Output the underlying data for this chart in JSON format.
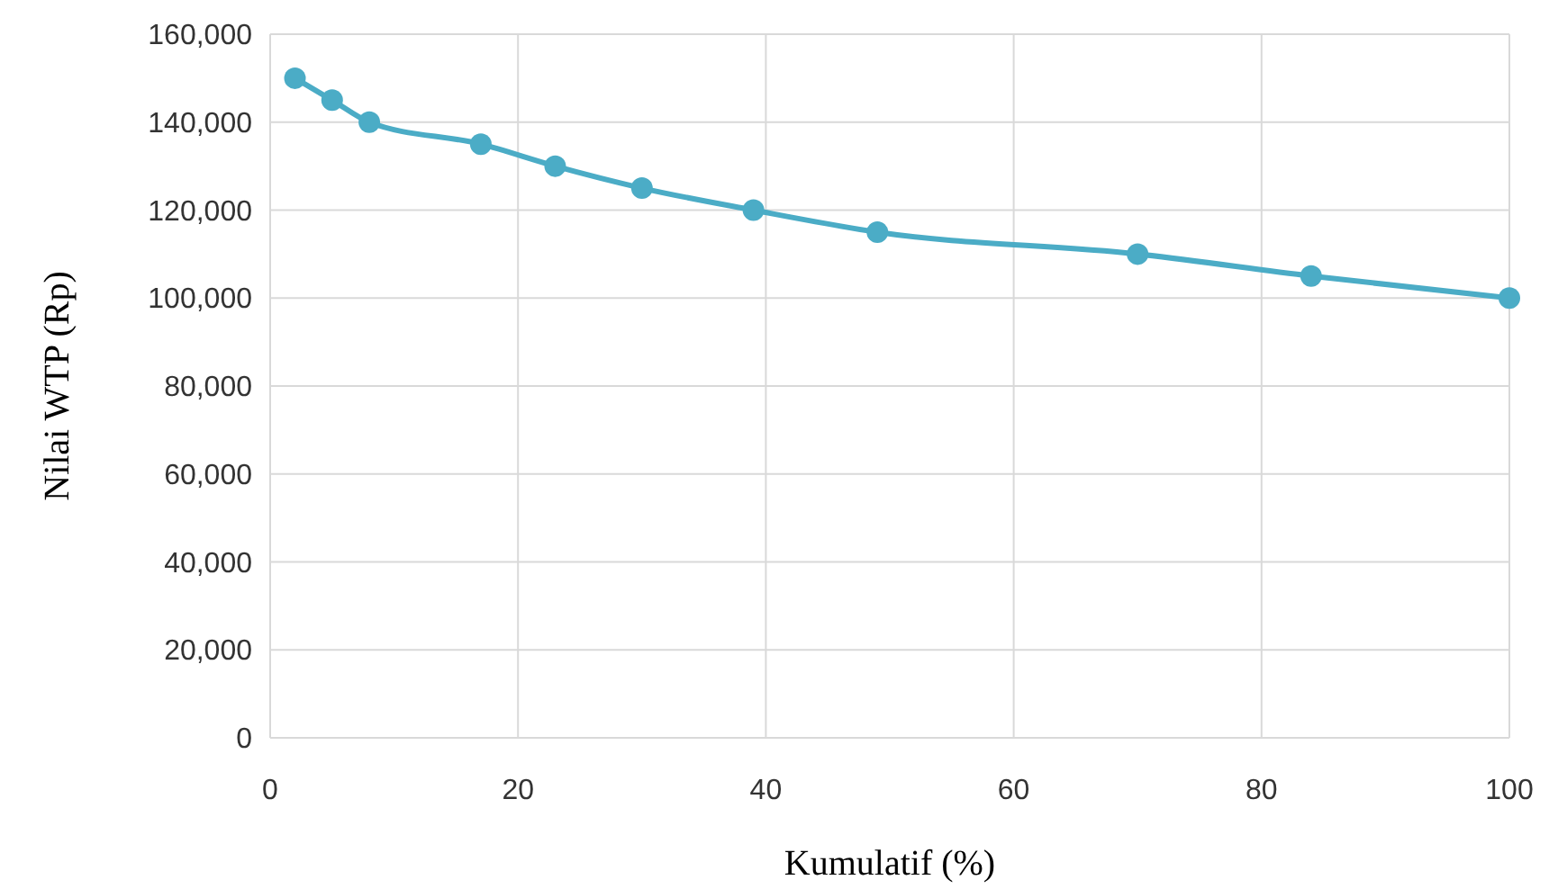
{
  "chart_data": {
    "type": "line",
    "xlabel": "Kumulatif (%)",
    "ylabel": "Nilai WTP (Rp)",
    "x": [
      2,
      5,
      8,
      17,
      23,
      30,
      39,
      49,
      70,
      84,
      100
    ],
    "series": [
      {
        "color": "#4bacc6",
        "values": [
          150000,
          145000,
          140000,
          135000,
          130000,
          125000,
          120000,
          115000,
          110000,
          105000,
          100000
        ]
      }
    ],
    "xlim": [
      0,
      100
    ],
    "xticks": [
      0,
      20,
      40,
      60,
      80,
      100
    ],
    "ylim": [
      0,
      160000
    ],
    "yticks": [
      {
        "value": 0,
        "label": "0"
      },
      {
        "value": 20000,
        "label": "20,000"
      },
      {
        "value": 40000,
        "label": "40,000"
      },
      {
        "value": 60000,
        "label": "60,000"
      },
      {
        "value": 80000,
        "label": "80,000"
      },
      {
        "value": 100000,
        "label": "100,000"
      },
      {
        "value": 120000,
        "label": "120,000"
      },
      {
        "value": 140000,
        "label": "140,000"
      },
      {
        "value": 160000,
        "label": "160,000"
      }
    ],
    "grid": true,
    "marker": "circle",
    "line_style": "solid"
  }
}
